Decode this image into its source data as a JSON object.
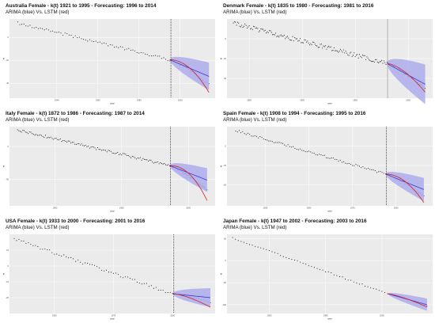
{
  "figure": {
    "legend_note": "ARIMA (blue) Vs. LSTM (red)"
  },
  "colors": {
    "panel_bg": "#ebebeb",
    "grid": "#ffffff",
    "points": "#111111",
    "arima": "#3b3bd6",
    "arima_band": "#a9a9ee",
    "lstm": "#d62020",
    "cutoff": "#111111"
  },
  "chart_data": [
    {
      "type": "scatter",
      "title": "Australia Female - k(t) 1921 to 1995 - Forecasting: 1996 to 2014",
      "subtitle": "ARIMA (blue) Vs. LSTM (red)",
      "xlabel": "year",
      "ylabel": "kt",
      "xlim": [
        1917,
        2017
      ],
      "ylim": [
        -53,
        16
      ],
      "xticks": [
        1940,
        1960,
        1980,
        2000
      ],
      "yticks": [
        -40,
        -20,
        0
      ],
      "fit_start": 1921,
      "fit_end": 1995,
      "forecast_start": 1996,
      "forecast_end": 2014,
      "cutoff_x": 1995.5,
      "cutoff_style": "dotted",
      "observed": {
        "start": 1921,
        "k0": 12.5,
        "k1": -19.5,
        "noise": 1.2
      },
      "arima": {
        "k_end": -34,
        "band_end": 12
      },
      "lstm": {
        "k_end": -48,
        "curve": 2.0
      }
    },
    {
      "type": "scatter",
      "title": "Denmark Female - k(t) 1835 to 1980 - Forecasting: 1981 to 2016",
      "subtitle": "ARIMA (blue) Vs. LSTM (red)",
      "xlabel": "year",
      "ylabel": "kt",
      "xlim": [
        1829,
        2023
      ],
      "ylim": [
        -60,
        20
      ],
      "xticks": [
        1850,
        1900,
        1950,
        2000
      ],
      "yticks": [
        -40,
        -20,
        0
      ],
      "fit_start": 1835,
      "fit_end": 1980,
      "forecast_start": 1981,
      "forecast_end": 2016,
      "cutoff_x": 1980.5,
      "cutoff_style": "solid",
      "observed": {
        "start": 1835,
        "k0": 16,
        "k1": -25,
        "noise": 2.2
      },
      "arima": {
        "k_end": -46,
        "band_end": 20
      },
      "lstm": {
        "k_end": -54,
        "curve": 1.6
      }
    },
    {
      "type": "scatter",
      "title": "Italy Female - k(t) 1872 to 1986 - Forecasting: 1987 to 2014",
      "subtitle": "ARIMA (blue) Vs. LSTM (red)",
      "xlabel": "year",
      "ylabel": "kt",
      "xlim": [
        1866,
        2020
      ],
      "ylim": [
        -90,
        30
      ],
      "xticks": [
        1900,
        1950,
        2000
      ],
      "yticks": [
        -50,
        0
      ],
      "fit_start": 1872,
      "fit_end": 1986,
      "forecast_start": 1987,
      "forecast_end": 2014,
      "cutoff_x": 1986.5,
      "cutoff_style": "dotted",
      "observed": {
        "start": 1872,
        "k0": 25,
        "k1": -29,
        "noise": 2.0
      },
      "arima": {
        "k_end": -51,
        "band_end": 18
      },
      "lstm": {
        "k_end": -82,
        "curve": 2.2
      }
    },
    {
      "type": "scatter",
      "title": "Spain Female - k(t) 1908 to 1994 - Forecasting: 1995 to 2016",
      "subtitle": "ARIMA (blue) Vs. LSTM (red)",
      "xlabel": "year",
      "ylabel": "kt",
      "xlim": [
        1903,
        2021
      ],
      "ylim": [
        -77,
        25
      ],
      "xticks": [
        1925,
        1950,
        1975,
        2000
      ],
      "yticks": [
        -50,
        -25,
        0
      ],
      "fit_start": 1908,
      "fit_end": 1994,
      "forecast_start": 1995,
      "forecast_end": 2016,
      "cutoff_x": 1994.5,
      "cutoff_style": "dotted",
      "observed": {
        "start": 1908,
        "k0": 20,
        "k1": -36,
        "noise": 1.4
      },
      "arima": {
        "k_end": -56,
        "band_end": 15
      },
      "lstm": {
        "k_end": -73,
        "curve": 2.0
      }
    },
    {
      "type": "scatter",
      "title": "USA Female - k(t) 1933 to 2000 - Forecasting: 2001 to 2016",
      "subtitle": "ARIMA (blue) Vs. LSTM (red)",
      "xlabel": "year",
      "ylabel": "kt",
      "xlim": [
        1931,
        2018
      ],
      "ylim": [
        -30,
        20
      ],
      "xticks": [
        1950,
        1975,
        2000
      ],
      "yticks": [
        -20,
        -10,
        0,
        10
      ],
      "fit_start": 1933,
      "fit_end": 2000,
      "forecast_start": 2001,
      "forecast_end": 2016,
      "cutoff_x": 2000.5,
      "cutoff_style": "dotted",
      "observed": {
        "start": 1933,
        "k0": 17,
        "k1": -17.5,
        "noise": 0.9
      },
      "arima": {
        "k_end": -20,
        "band_end": 6
      },
      "lstm": {
        "k_end": -26,
        "curve": 1.5
      }
    },
    {
      "type": "scatter",
      "title": "Japan Female - k(t) 1947 to 2002 - Forecasting: 2003 to 2016",
      "subtitle": "ARIMA (blue) Vs. LSTM (red)",
      "xlabel": "year",
      "ylabel": "kt",
      "xlim": [
        1945,
        2018
      ],
      "ylim": [
        -120,
        60
      ],
      "xticks": [
        1960,
        1980,
        2000
      ],
      "yticks": [
        -100,
        -50,
        0,
        50
      ],
      "fit_start": 1947,
      "fit_end": 2002,
      "forecast_start": 2003,
      "forecast_end": 2016,
      "cutoff_x": 2002.5,
      "cutoff_style": "none",
      "observed": {
        "start": 1947,
        "k0": 52,
        "k1": -75,
        "noise": 1.5
      },
      "arima": {
        "k_end": -100,
        "band_end": 14
      },
      "lstm": {
        "k_end": -105,
        "curve": 1.3
      }
    }
  ]
}
